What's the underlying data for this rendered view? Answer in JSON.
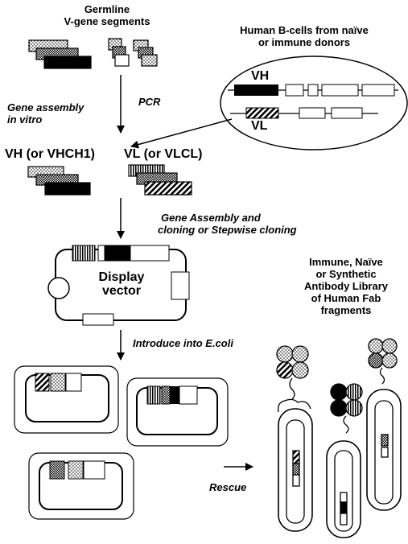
{
  "labels": {
    "germline_line1": "Germline",
    "germline_line2": "V-gene segments",
    "bcells_line1": "Human B-cells from naïve",
    "bcells_line2": "or immune donors",
    "vh_gene": "VH",
    "vl_gene": "VL",
    "gene_assembly_line1": "Gene assembly",
    "gene_assembly_line2": "in vitro",
    "pcr": "PCR",
    "vh_product": "VH (or VHCH1)",
    "vl_product": "VL (or VLCL)",
    "assembly_cloning_line1": "Gene Assembly and",
    "assembly_cloning_line2": "cloning or Stepwise cloning",
    "display_vector_line1": "Display",
    "display_vector_line2": "vector",
    "introduce": "Introduce into E.coli",
    "rescue": "Rescue",
    "library_line1": "Immune, Naïve",
    "library_line2": "or Synthetic",
    "library_line3": "Antibody Library",
    "library_line4": "of Human Fab",
    "library_line5": "fragments"
  },
  "colors": {
    "ink": "#000000",
    "background": "#ffffff"
  }
}
